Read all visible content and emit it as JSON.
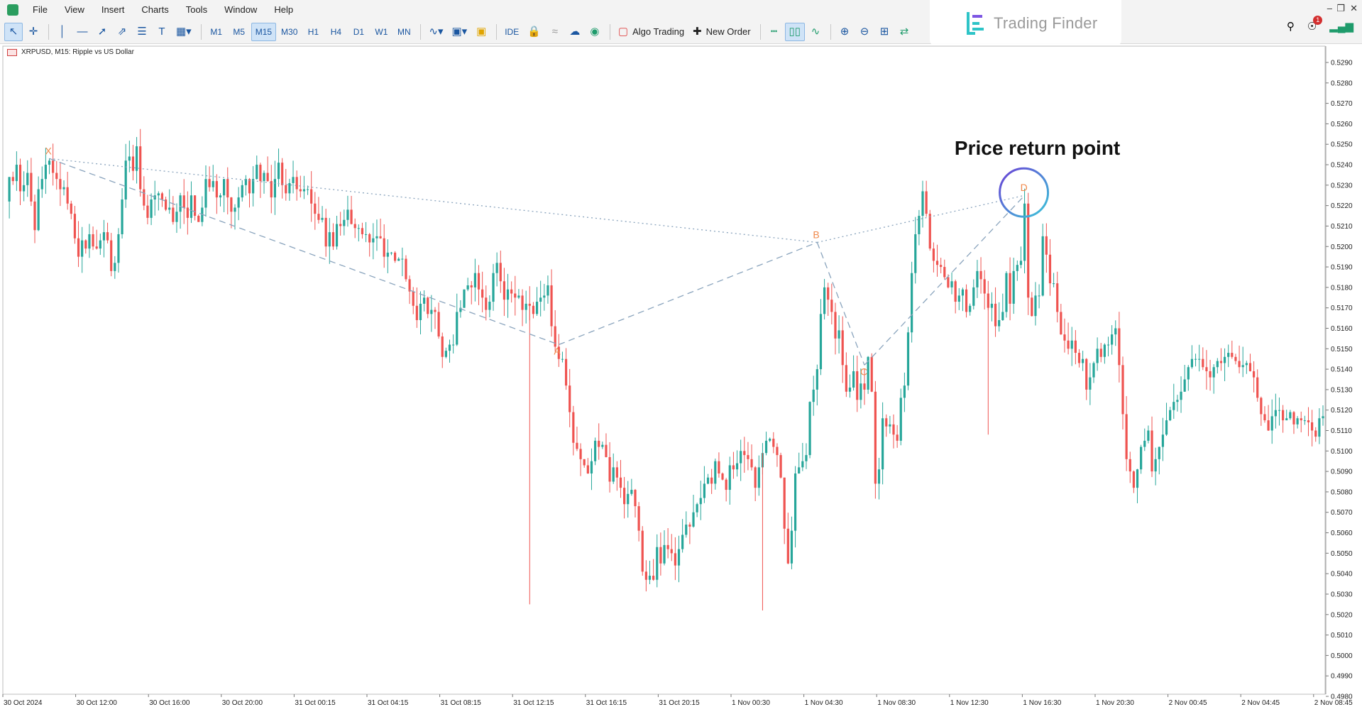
{
  "menu": [
    "File",
    "View",
    "Insert",
    "Charts",
    "Tools",
    "Window",
    "Help"
  ],
  "toolbar": {
    "timeframes": [
      "M1",
      "M5",
      "M15",
      "M30",
      "H1",
      "H4",
      "D1",
      "W1",
      "MN"
    ],
    "active_timeframe": "M15",
    "ide_label": "IDE",
    "algo_trading_label": "Algo Trading",
    "new_order_label": "New Order",
    "notification_count": "1"
  },
  "logo": {
    "text": "Trading Finder"
  },
  "chart": {
    "symbol_label": "XRPUSD, M15:  Ripple vs US Dollar",
    "annotation": "Price return point",
    "pattern_points": [
      "X",
      "A",
      "B",
      "C",
      "D"
    ],
    "colors": {
      "bull": "#26a69a",
      "bear": "#ef5350",
      "pattern": "#8aa4bd",
      "point_label": "#f0884a"
    }
  },
  "chart_data": {
    "type": "candlestick",
    "symbol": "XRPUSD",
    "timeframe": "M15",
    "y_ticks": [
      "0.5290",
      "0.5280",
      "0.5270",
      "0.5260",
      "0.5250",
      "0.5240",
      "0.5230",
      "0.5220",
      "0.5210",
      "0.5200",
      "0.5190",
      "0.5180",
      "0.5170",
      "0.5160",
      "0.5150",
      "0.5140",
      "0.5130",
      "0.5120",
      "0.5110",
      "0.5100",
      "0.5090",
      "0.5080",
      "0.5070",
      "0.5060",
      "0.5050",
      "0.5040",
      "0.5030",
      "0.5020",
      "0.5010",
      "0.5000",
      "0.4990",
      "0.4980"
    ],
    "x_ticks": [
      "30 Oct 2024",
      "30 Oct 12:00",
      "30 Oct 16:00",
      "30 Oct 20:00",
      "31 Oct 00:15",
      "31 Oct 04:15",
      "31 Oct 08:15",
      "31 Oct 12:15",
      "31 Oct 16:15",
      "31 Oct 20:15",
      "1 Nov 00:30",
      "1 Nov 04:30",
      "1 Nov 08:30",
      "1 Nov 12:30",
      "1 Nov 16:30",
      "1 Nov 20:30",
      "2 Nov 00:45",
      "2 Nov 04:45",
      "2 Nov 08:45"
    ],
    "ylim": [
      0.4975,
      0.5295
    ],
    "harmonic_points": [
      {
        "label": "X",
        "bar": 12,
        "price": 0.5243
      },
      {
        "label": "A",
        "bar": 152,
        "price": 0.5152
      },
      {
        "label": "B",
        "bar": 223,
        "price": 0.5202
      },
      {
        "label": "C",
        "bar": 236,
        "price": 0.5142
      },
      {
        "label": "D",
        "bar": 280,
        "price": 0.5225
      }
    ],
    "closes": [
      0.5222,
      0.5234,
      0.5232,
      0.524,
      0.5227,
      0.523,
      0.5236,
      0.5222,
      0.5208,
      0.5228,
      0.5233,
      0.524,
      0.5242,
      0.5236,
      0.5233,
      0.5228,
      0.5229,
      0.5221,
      0.5216,
      0.5204,
      0.5195,
      0.5203,
      0.5199,
      0.5206,
      0.52,
      0.5199,
      0.5203,
      0.5207,
      0.5203,
      0.5188,
      0.5192,
      0.5206,
      0.5223,
      0.5242,
      0.5244,
      0.5237,
      0.5249,
      0.5228,
      0.522,
      0.5214,
      0.5223,
      0.5225,
      0.5226,
      0.5223,
      0.5218,
      0.5219,
      0.5212,
      0.5217,
      0.5225,
      0.5219,
      0.5214,
      0.5225,
      0.5215,
      0.5212,
      0.5219,
      0.5233,
      0.5229,
      0.5232,
      0.5224,
      0.5225,
      0.5233,
      0.5224,
      0.5217,
      0.5219,
      0.5224,
      0.523,
      0.5233,
      0.5226,
      0.5233,
      0.524,
      0.5232,
      0.5236,
      0.5232,
      0.5224,
      0.5233,
      0.5241,
      0.523,
      0.5226,
      0.5231,
      0.5234,
      0.5228,
      0.5227,
      0.5228,
      0.5228,
      0.5221,
      0.5216,
      0.5213,
      0.5214,
      0.52,
      0.5207,
      0.52,
      0.5211,
      0.521,
      0.5213,
      0.5218,
      0.5211,
      0.5209,
      0.5209,
      0.5206,
      0.5206,
      0.5202,
      0.5204,
      0.5205,
      0.5204,
      0.5195,
      0.5197,
      0.5197,
      0.5193,
      0.5194,
      0.5194,
      0.5184,
      0.5178,
      0.5171,
      0.5164,
      0.5172,
      0.5175,
      0.5167,
      0.5169,
      0.5168,
      0.5156,
      0.5146,
      0.5149,
      0.5152,
      0.5152,
      0.5168,
      0.517,
      0.5179,
      0.5181,
      0.518,
      0.5187,
      0.5179,
      0.5175,
      0.5169,
      0.5173,
      0.5187,
      0.5192,
      0.5183,
      0.5174,
      0.5179,
      0.5177,
      0.5175,
      0.5176,
      0.5169,
      0.5172,
      0.5171,
      0.5167,
      0.5173,
      0.5175,
      0.5176,
      0.5181,
      0.5161,
      0.5151,
      0.5145,
      0.5145,
      0.5132,
      0.5119,
      0.5104,
      0.5101,
      0.5096,
      0.5093,
      0.5089,
      0.5095,
      0.5105,
      0.5102,
      0.5103,
      0.5097,
      0.5085,
      0.5092,
      0.5087,
      0.5082,
      0.5074,
      0.5079,
      0.5081,
      0.5073,
      0.5061,
      0.5041,
      0.5037,
      0.5039,
      0.5037,
      0.5053,
      0.5045,
      0.5054,
      0.5052,
      0.505,
      0.5044,
      0.5052,
      0.5059,
      0.5064,
      0.5063,
      0.507,
      0.5074,
      0.5077,
      0.5084,
      0.5087,
      0.5084,
      0.5095,
      0.5089,
      0.5086,
      0.5081,
      0.5093,
      0.5091,
      0.5094,
      0.51,
      0.5098,
      0.5096,
      0.5092,
      0.5082,
      0.5092,
      0.5099,
      0.5105,
      0.5106,
      0.5102,
      0.5098,
      0.5087,
      0.5062,
      0.5045,
      0.5061,
      0.5089,
      0.5092,
      0.5095,
      0.5098,
      0.5124,
      0.513,
      0.514,
      0.5167,
      0.518,
      0.5174,
      0.5168,
      0.5155,
      0.5159,
      0.5142,
      0.5129,
      0.5131,
      0.5139,
      0.5125,
      0.5133,
      0.513,
      0.5146,
      0.5129,
      0.5084,
      0.5091,
      0.5116,
      0.5112,
      0.5113,
      0.5108,
      0.5105,
      0.5126,
      0.5132,
      0.5158,
      0.5187,
      0.5206,
      0.5215,
      0.5227,
      0.5216,
      0.5199,
      0.5193,
      0.5191,
      0.519,
      0.5185,
      0.518,
      0.5183,
      0.5173,
      0.5176,
      0.5179,
      0.5168,
      0.5171,
      0.518,
      0.5188,
      0.5184,
      0.5177,
      0.517,
      0.5172,
      0.5161,
      0.5164,
      0.5168,
      0.5187,
      0.5172,
      0.5188,
      0.5191,
      0.5193,
      0.5221,
      0.5175,
      0.5166,
      0.5176,
      0.5176,
      0.5205,
      0.5196,
      0.5182,
      0.5182,
      0.5168,
      0.5157,
      0.5154,
      0.515,
      0.5154,
      0.5148,
      0.5143,
      0.5145,
      0.513,
      0.5136,
      0.5143,
      0.515,
      0.5146,
      0.5152,
      0.5152,
      0.5157,
      0.516,
      0.5142,
      0.5118,
      0.5096,
      0.509,
      0.5082,
      0.5091,
      0.5102,
      0.5105,
      0.511,
      0.509,
      0.5096,
      0.5102,
      0.5108,
      0.5115,
      0.512,
      0.5124,
      0.5125,
      0.5129,
      0.5135,
      0.5141,
      0.5145,
      0.5145,
      0.5145,
      0.5141,
      0.5139,
      0.5136,
      0.5141,
      0.5144,
      0.5143,
      0.5146,
      0.5148,
      0.5146,
      0.5144,
      0.5141,
      0.5142,
      0.5143,
      0.5139,
      0.5136,
      0.5126,
      0.5118,
      0.5115,
      0.511,
      0.5117,
      0.512,
      0.512,
      0.5115,
      0.5116,
      0.5119,
      0.5113,
      0.5116,
      0.5115,
      0.5115,
      0.5114,
      0.511,
      0.5107,
      0.5116,
      0.5117
    ]
  }
}
